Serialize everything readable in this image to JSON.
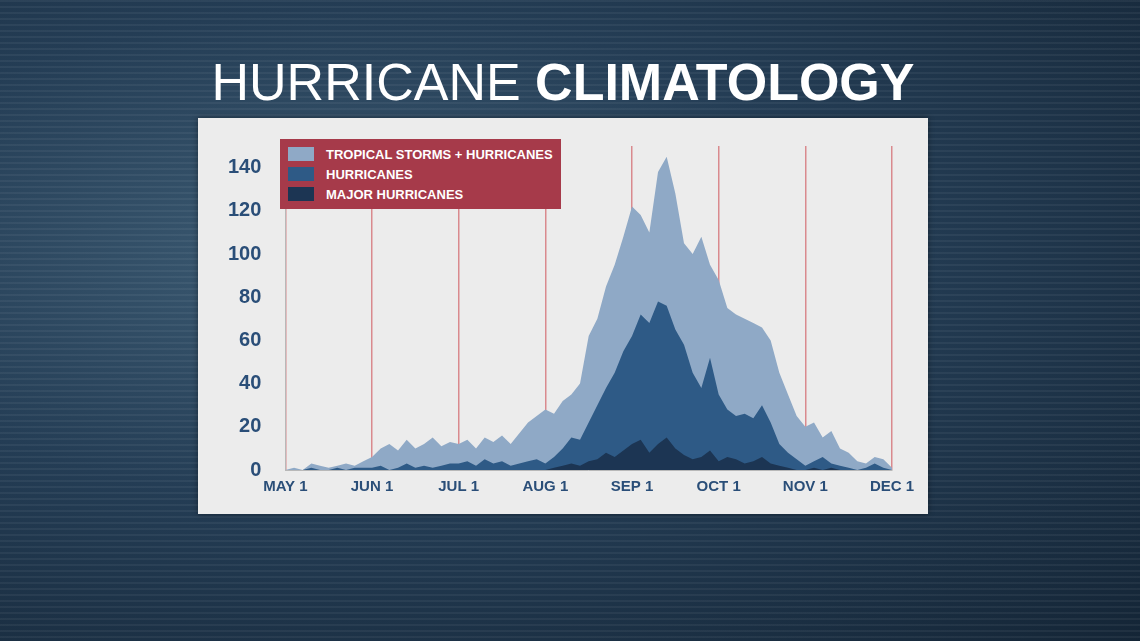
{
  "chart_data": {
    "type": "area",
    "title": "HURRICANE CLIMATOLOGY",
    "categories": [
      "MAY 1",
      null,
      null,
      null,
      null,
      null,
      null,
      null,
      null,
      null,
      "JUN 1",
      null,
      null,
      null,
      null,
      null,
      null,
      null,
      null,
      null,
      "JUL 1",
      null,
      null,
      null,
      null,
      null,
      null,
      null,
      null,
      null,
      "AUG 1",
      null,
      null,
      null,
      null,
      null,
      null,
      null,
      null,
      null,
      "SEP 1",
      null,
      null,
      null,
      null,
      null,
      null,
      null,
      null,
      null,
      "OCT 1",
      null,
      null,
      null,
      null,
      null,
      null,
      null,
      null,
      null,
      "NOV 1",
      null,
      null,
      null,
      null,
      null,
      null,
      null,
      null,
      null,
      "DEC 1"
    ],
    "series": [
      {
        "name": "TROPICAL STORMS + HURRICANES",
        "color": "#8fa9c6",
        "values": [
          0,
          1,
          0,
          3,
          2,
          1,
          2,
          3,
          2,
          4,
          6,
          10,
          12,
          9,
          14,
          10,
          12,
          15,
          11,
          13,
          12,
          14,
          10,
          15,
          13,
          16,
          12,
          17,
          22,
          25,
          28,
          26,
          32,
          35,
          40,
          62,
          70,
          85,
          95,
          108,
          122,
          118,
          110,
          138,
          145,
          128,
          105,
          100,
          108,
          95,
          88,
          75,
          72,
          70,
          68,
          66,
          60,
          45,
          35,
          25,
          20,
          22,
          15,
          18,
          10,
          8,
          4,
          3,
          6,
          5,
          1
        ]
      },
      {
        "name": "HURRICANES",
        "color": "#2e5a86",
        "values": [
          0,
          0,
          0,
          1,
          0,
          0,
          1,
          0,
          1,
          1,
          1,
          2,
          0,
          1,
          3,
          1,
          2,
          1,
          2,
          3,
          3,
          4,
          2,
          5,
          3,
          4,
          2,
          3,
          4,
          5,
          3,
          6,
          10,
          15,
          14,
          22,
          30,
          38,
          45,
          55,
          62,
          72,
          68,
          78,
          76,
          65,
          58,
          45,
          38,
          52,
          35,
          28,
          25,
          26,
          24,
          30,
          22,
          12,
          8,
          5,
          2,
          4,
          6,
          3,
          2,
          1,
          0,
          1,
          3,
          1,
          0
        ]
      },
      {
        "name": "MAJOR HURRICANES",
        "color": "#1c3553",
        "values": [
          0,
          0,
          0,
          0,
          0,
          0,
          0,
          0,
          0,
          0,
          0,
          0,
          0,
          0,
          0,
          0,
          0,
          0,
          0,
          0,
          0,
          0,
          0,
          0,
          0,
          0,
          0,
          0,
          0,
          0,
          0,
          1,
          2,
          3,
          2,
          4,
          5,
          8,
          6,
          9,
          12,
          14,
          8,
          12,
          15,
          10,
          7,
          5,
          6,
          9,
          4,
          6,
          5,
          3,
          4,
          6,
          3,
          2,
          1,
          0,
          0,
          1,
          0,
          1,
          0,
          0,
          0,
          0,
          0,
          0,
          0
        ]
      }
    ],
    "ylim": [
      0,
      150
    ],
    "yticks": [
      0,
      20,
      40,
      60,
      80,
      100,
      120,
      140
    ],
    "grid": true,
    "legend": "upper left"
  }
}
